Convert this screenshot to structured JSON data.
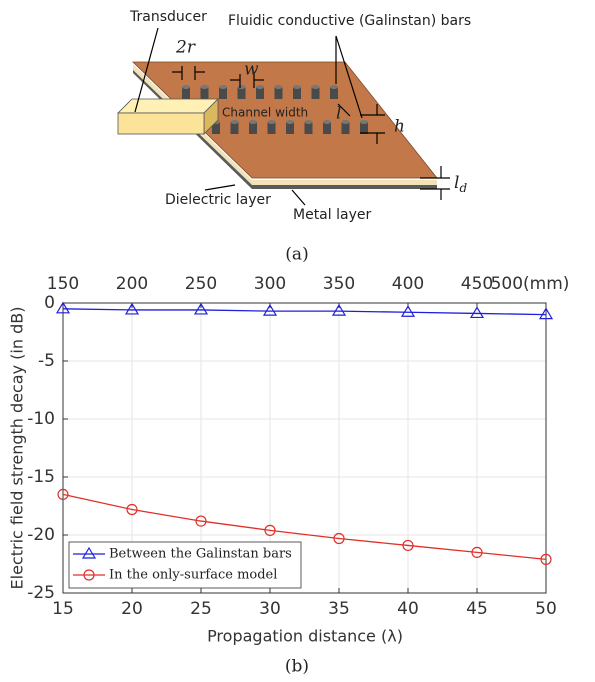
{
  "diagram": {
    "transducer": "Transducer",
    "bars": "Fluidic conductive (Galinstan) bars",
    "radius": "2r",
    "width": "w",
    "channel": "Channel width",
    "length": "l",
    "height": "h",
    "thickness": {
      "main": "l",
      "sub": "d"
    },
    "dielectric": "Dielectric layer",
    "metal": "Metal layer",
    "caption": "(a)"
  },
  "chart_data": {
    "type": "line",
    "caption": "(b)",
    "x_label": "Propagation distance (λ)",
    "y_label": "Electric field strength decay (in dB)",
    "x": [
      15,
      20,
      25,
      30,
      35,
      40,
      45,
      50
    ],
    "xlim": [
      15,
      50
    ],
    "xticks": [
      15,
      20,
      25,
      30,
      35,
      40,
      45,
      50
    ],
    "x2lim": [
      150,
      500
    ],
    "x2ticks": [
      150,
      200,
      250,
      300,
      350,
      400,
      450,
      {
        "value": 500,
        "label": "500(mm)"
      }
    ],
    "ylim": [
      -25,
      0
    ],
    "yticks": [
      -25,
      -20,
      -15,
      -10,
      -5,
      0
    ],
    "grid": true,
    "legend": "lower left",
    "series": [
      {
        "name": "Between the Galinstan bars",
        "color": "#1f1fdc",
        "marker": "triangle",
        "values": [
          -0.5,
          -0.6,
          -0.6,
          -0.7,
          -0.7,
          -0.8,
          -0.9,
          -1.0
        ]
      },
      {
        "name": "In the only-surface model",
        "color": "#e0302a",
        "marker": "circle",
        "values": [
          -16.5,
          -17.8,
          -18.8,
          -19.6,
          -20.3,
          -20.9,
          -21.5,
          -22.1
        ]
      }
    ]
  }
}
